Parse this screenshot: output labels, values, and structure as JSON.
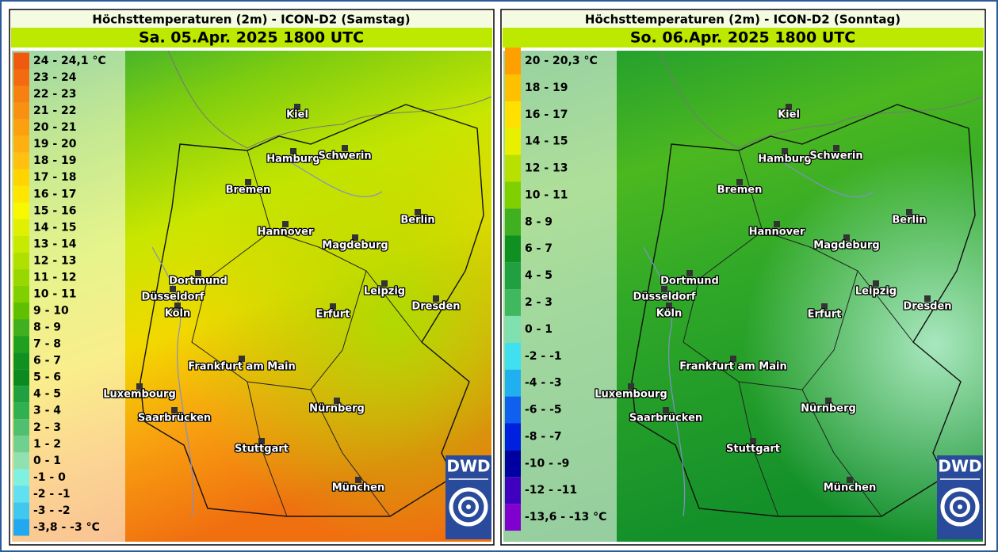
{
  "logo": "DWD",
  "cities": [
    "Kiel",
    "Hamburg",
    "Schwerin",
    "Bremen",
    "Berlin",
    "Hannover",
    "Magdeburg",
    "Dortmund",
    "Düsseldorf",
    "Leipzig",
    "Köln",
    "Erfurt",
    "Dresden",
    "Frankfurt am Main",
    "Luxembourg",
    "Nürnberg",
    "Saarbrücken",
    "Stuttgart",
    "München"
  ],
  "panels": [
    {
      "title": "Höchsttemperaturen (2m) - ICON-D2 (Samstag)",
      "subtitle": "Sa. 05.Apr. 2025 1800 UTC",
      "legend": [
        {
          "label": "24 - 24,1 °C",
          "color": "#f05a10"
        },
        {
          "label": "23 - 24",
          "color": "#f46a10"
        },
        {
          "label": "22 - 23",
          "color": "#f88010"
        },
        {
          "label": "21 - 22",
          "color": "#fa9010"
        },
        {
          "label": "20 - 21",
          "color": "#fca010"
        },
        {
          "label": "19 - 20",
          "color": "#fdb010"
        },
        {
          "label": "18 - 19",
          "color": "#ffc010"
        },
        {
          "label": "17 - 18",
          "color": "#ffd400"
        },
        {
          "label": "16 - 17",
          "color": "#ffe600"
        },
        {
          "label": "15 - 16",
          "color": "#f8f800"
        },
        {
          "label": "14 - 15",
          "color": "#e0f000"
        },
        {
          "label": "13 - 14",
          "color": "#c8ea00"
        },
        {
          "label": "12 - 13",
          "color": "#b0e000"
        },
        {
          "label": "11 - 12",
          "color": "#98d800"
        },
        {
          "label": "10 - 11",
          "color": "#80d000"
        },
        {
          "label": "9 - 10",
          "color": "#60c000"
        },
        {
          "label": "8 - 9",
          "color": "#40b020"
        },
        {
          "label": "7 - 8",
          "color": "#20a020"
        },
        {
          "label": "6 - 7",
          "color": "#109020"
        },
        {
          "label": "5 - 6",
          "color": "#0a8a20"
        },
        {
          "label": "4 - 5",
          "color": "#20a040"
        },
        {
          "label": "3 - 4",
          "color": "#30b050"
        },
        {
          "label": "2 - 3",
          "color": "#50c070"
        },
        {
          "label": "1 - 2",
          "color": "#70d090"
        },
        {
          "label": "0 - 1",
          "color": "#90e0b0"
        },
        {
          "label": "-1 - 0",
          "color": "#80f0e0"
        },
        {
          "label": "-2 - -1",
          "color": "#60e0f0"
        },
        {
          "label": "-3 - -2",
          "color": "#40c8f0"
        },
        {
          "label": "-3,8 - -3 °C",
          "color": "#20a8f0"
        }
      ]
    },
    {
      "title": "Höchsttemperaturen (2m) - ICON-D2 (Sonntag)",
      "subtitle": "So. 06.Apr. 2025 1800 UTC",
      "legend": [
        {
          "label": "20 - 20,3 °C",
          "color": "#ffa000"
        },
        {
          "label": "18 - 19",
          "color": "#ffc000"
        },
        {
          "label": "16 - 17",
          "color": "#ffe000"
        },
        {
          "label": "14 - 15",
          "color": "#e8f000"
        },
        {
          "label": "12 - 13",
          "color": "#b8e000"
        },
        {
          "label": "10 - 11",
          "color": "#80d000"
        },
        {
          "label": "8 - 9",
          "color": "#40b020"
        },
        {
          "label": "6 - 7",
          "color": "#109020"
        },
        {
          "label": "4 - 5",
          "color": "#20a040"
        },
        {
          "label": "2 - 3",
          "color": "#40b860"
        },
        {
          "label": "0 - 1",
          "color": "#80e0b0"
        },
        {
          "label": "-2 - -1",
          "color": "#40e0f0"
        },
        {
          "label": "-4 - -3",
          "color": "#20b0f0"
        },
        {
          "label": "-6 - -5",
          "color": "#1060f0"
        },
        {
          "label": "-8 - -7",
          "color": "#0020e0"
        },
        {
          "label": "-10 - -9",
          "color": "#0000a0"
        },
        {
          "label": "-12 - -11",
          "color": "#4000c0"
        },
        {
          "label": "-13,6 - -13 °C",
          "color": "#8000d0"
        }
      ]
    }
  ]
}
